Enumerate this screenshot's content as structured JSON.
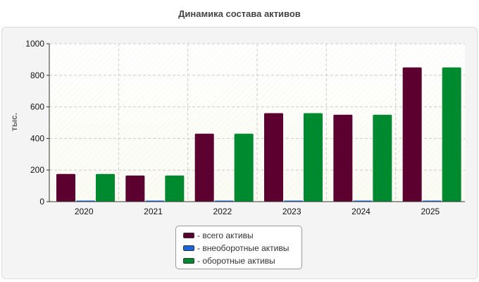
{
  "chart_data": {
    "type": "bar",
    "title": "Динамика состава активов",
    "ylabel": "тыс.",
    "xlabel": "",
    "categories": [
      "2020",
      "2021",
      "2022",
      "2023",
      "2024",
      "2025"
    ],
    "ylim": [
      0,
      1000
    ],
    "yticks": [
      0,
      200,
      400,
      600,
      800,
      1000
    ],
    "grid": true,
    "legend_position": "bottom",
    "series": [
      {
        "name": "- всего активы",
        "color": "#5c0030",
        "values": [
          175,
          165,
          430,
          560,
          550,
          850
        ]
      },
      {
        "name": "- внеоборотные активы",
        "color": "#1565e0",
        "values": [
          5,
          5,
          5,
          5,
          5,
          5
        ]
      },
      {
        "name": "- оборотные активы",
        "color": "#008a30",
        "values": [
          175,
          165,
          430,
          560,
          550,
          850
        ]
      }
    ]
  }
}
